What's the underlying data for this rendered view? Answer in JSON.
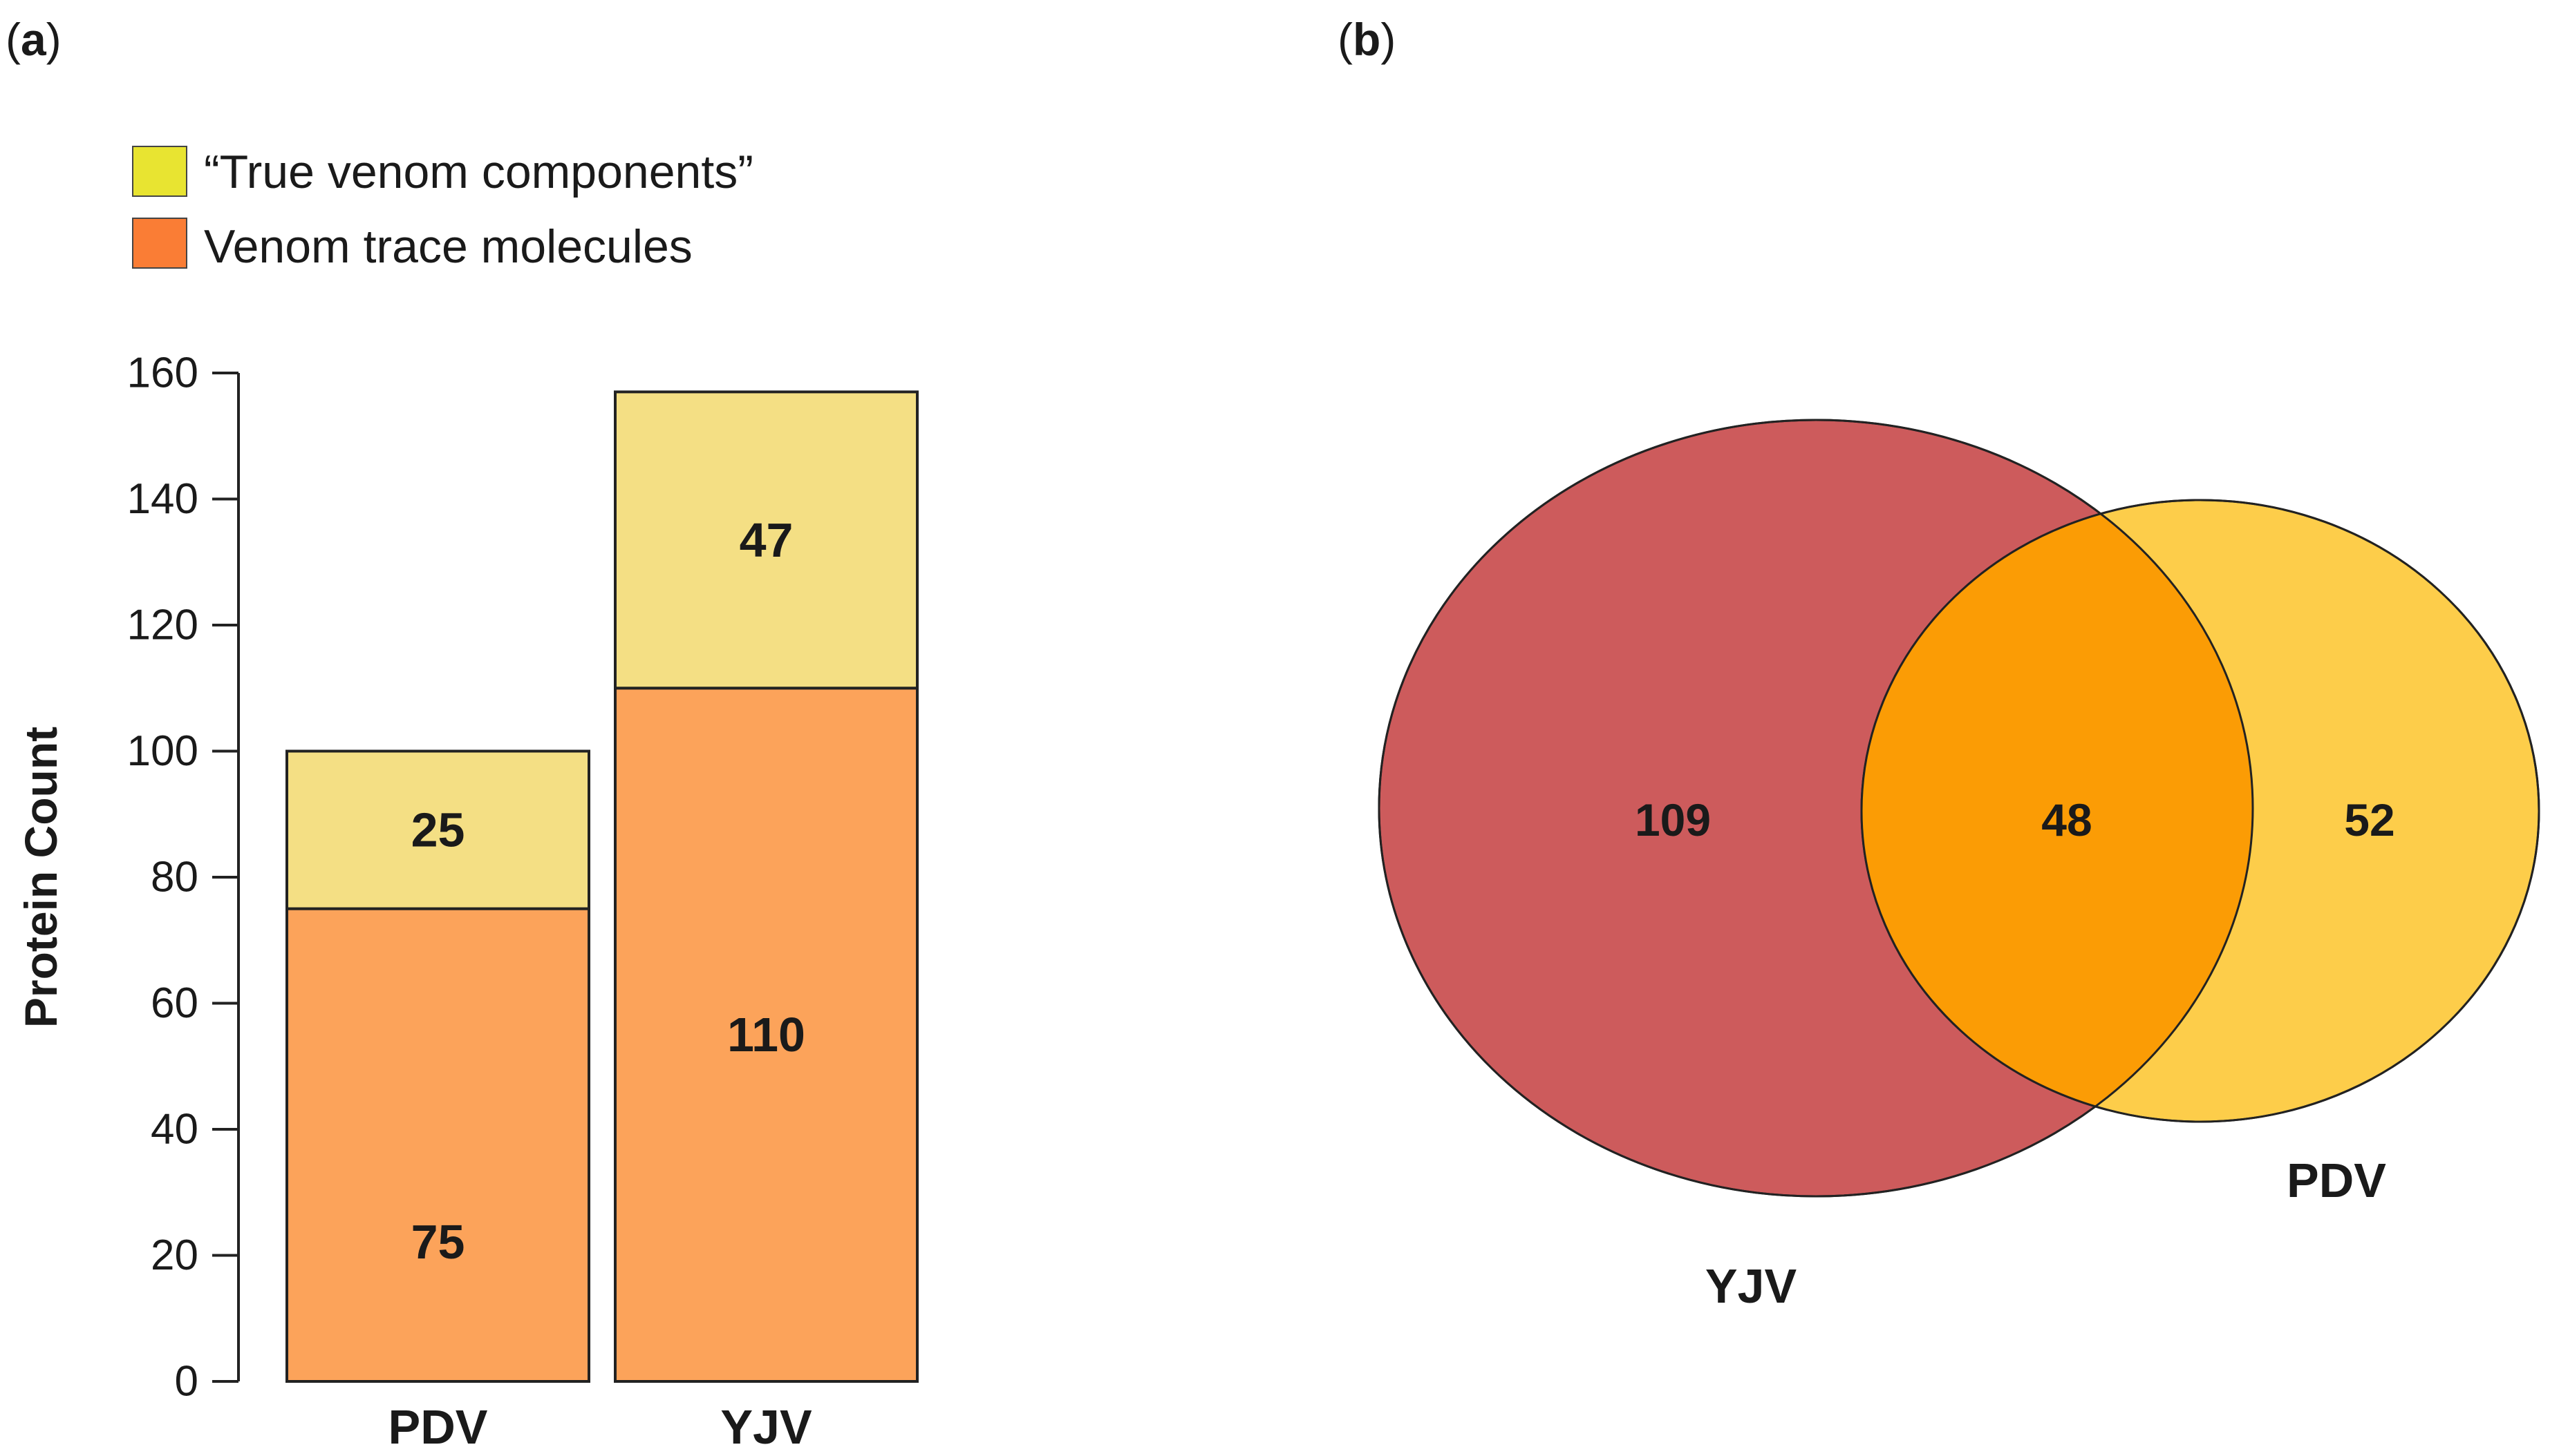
{
  "panels": {
    "a": {
      "open": "(",
      "letter": "a",
      "close": ")"
    },
    "b": {
      "open": "(",
      "letter": "b",
      "close": ")"
    }
  },
  "colors": {
    "true_venom": "#f4df84",
    "trace": "#fca35a",
    "legend_true_venom": "#e8e431",
    "legend_trace": "#fa7d35",
    "venn_yjv": "#cd5b5c",
    "venn_pdv": "#fdcd4a",
    "venn_overlap": "#fb9c05",
    "outline": "#222222"
  },
  "chart_data": [
    {
      "type": "bar",
      "stacked": true,
      "categories": [
        "PDV",
        "YJV"
      ],
      "series": [
        {
          "name": "Venom trace molecules",
          "values": [
            75,
            110
          ]
        },
        {
          "name": "“True venom components”",
          "values": [
            25,
            47
          ]
        }
      ],
      "title": "",
      "xlabel": "",
      "ylabel": "Protein Count",
      "ylim": [
        0,
        160
      ],
      "yticks": [
        0,
        20,
        40,
        60,
        80,
        100,
        120,
        140,
        160
      ],
      "legend": {
        "placement": "top-left",
        "entries": [
          "“True venom components”",
          "Venom trace molecules"
        ]
      }
    },
    {
      "type": "venn",
      "sets": [
        {
          "name": "YJV",
          "total": 157,
          "unique": 109
        },
        {
          "name": "PDV",
          "total": 100,
          "unique": 52
        }
      ],
      "intersection": 48,
      "labels": {
        "yjv_only": "109",
        "overlap": "48",
        "pdv_only": "52"
      }
    }
  ]
}
